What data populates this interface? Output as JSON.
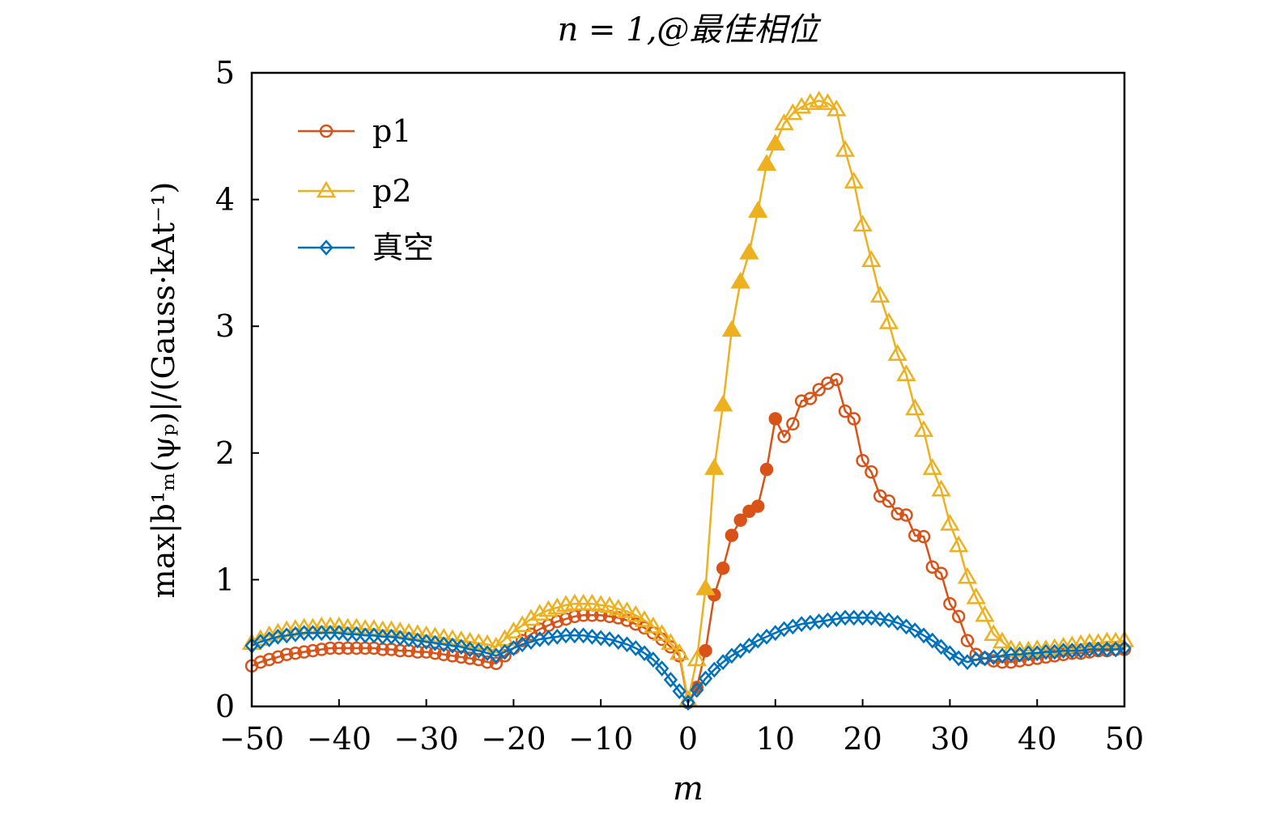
{
  "chart_data": {
    "type": "line",
    "title": "n = 1,@最佳相位",
    "xlabel": "m",
    "ylabel": "max|b¹ₘ(ψₚ)|/(Gauss·kAt⁻¹)",
    "xlim": [
      -50,
      50
    ],
    "ylim": [
      0,
      5
    ],
    "xticks": [
      -50,
      -40,
      -30,
      -20,
      -10,
      0,
      10,
      20,
      30,
      40,
      50
    ],
    "xtick_labels": [
      "−50",
      "−40",
      "−30",
      "−20",
      "−10",
      "0",
      "10",
      "20",
      "30",
      "40",
      "50"
    ],
    "yticks": [
      0,
      1,
      2,
      3,
      4,
      5
    ],
    "ytick_labels": [
      "0",
      "1",
      "2",
      "3",
      "4",
      "5"
    ],
    "grid": false,
    "legend_position": "top-left",
    "x_start": -50,
    "x_step": 1,
    "series": [
      {
        "name": "p1",
        "color": "#D95319",
        "marker": "circle",
        "filled_x": [
          1,
          2,
          3,
          4,
          5,
          6,
          7,
          8,
          9,
          10
        ],
        "values": [
          0.32,
          0.35,
          0.37,
          0.39,
          0.41,
          0.42,
          0.43,
          0.44,
          0.45,
          0.46,
          0.46,
          0.46,
          0.46,
          0.46,
          0.46,
          0.45,
          0.45,
          0.44,
          0.44,
          0.43,
          0.43,
          0.42,
          0.41,
          0.4,
          0.39,
          0.38,
          0.37,
          0.35,
          0.34,
          0.4,
          0.46,
          0.52,
          0.57,
          0.61,
          0.64,
          0.67,
          0.69,
          0.71,
          0.72,
          0.72,
          0.72,
          0.71,
          0.7,
          0.68,
          0.65,
          0.62,
          0.58,
          0.53,
          0.47,
          0.4,
          0.03,
          0.15,
          0.44,
          0.88,
          1.09,
          1.35,
          1.47,
          1.54,
          1.58,
          1.87,
          2.27,
          2.13,
          2.23,
          2.41,
          2.43,
          2.5,
          2.55,
          2.58,
          2.33,
          2.27,
          1.94,
          1.85,
          1.66,
          1.62,
          1.52,
          1.51,
          1.35,
          1.34,
          1.1,
          1.05,
          0.81,
          0.71,
          0.52,
          0.41,
          0.38,
          0.36,
          0.35,
          0.35,
          0.36,
          0.37,
          0.38,
          0.39,
          0.4,
          0.41,
          0.42,
          0.42,
          0.43,
          0.44,
          0.44,
          0.45,
          0.45
        ]
      },
      {
        "name": "p2",
        "color": "#EDB120",
        "marker": "triangle",
        "filled_x": [
          2,
          3,
          4,
          5,
          6,
          7,
          8,
          9,
          10
        ],
        "values": [
          0.5,
          0.53,
          0.56,
          0.58,
          0.6,
          0.61,
          0.62,
          0.62,
          0.63,
          0.63,
          0.63,
          0.62,
          0.62,
          0.61,
          0.61,
          0.6,
          0.6,
          0.59,
          0.58,
          0.57,
          0.56,
          0.55,
          0.54,
          0.53,
          0.52,
          0.51,
          0.5,
          0.49,
          0.47,
          0.53,
          0.59,
          0.64,
          0.69,
          0.73,
          0.76,
          0.78,
          0.8,
          0.81,
          0.81,
          0.81,
          0.8,
          0.79,
          0.77,
          0.75,
          0.72,
          0.68,
          0.63,
          0.57,
          0.5,
          0.42,
          0.05,
          0.37,
          0.93,
          1.88,
          2.38,
          2.97,
          3.35,
          3.58,
          3.91,
          4.28,
          4.44,
          4.6,
          4.68,
          4.73,
          4.76,
          4.78,
          4.76,
          4.71,
          4.39,
          4.14,
          3.8,
          3.52,
          3.24,
          3.03,
          2.78,
          2.62,
          2.35,
          2.18,
          1.88,
          1.71,
          1.44,
          1.27,
          1.02,
          0.86,
          0.72,
          0.57,
          0.51,
          0.45,
          0.44,
          0.44,
          0.45,
          0.45,
          0.46,
          0.47,
          0.48,
          0.49,
          0.5,
          0.5,
          0.51,
          0.51,
          0.52
        ]
      },
      {
        "name": "真空",
        "color": "#0072BD",
        "marker": "diamond",
        "filled_x": [],
        "values": [
          0.48,
          0.51,
          0.53,
          0.55,
          0.56,
          0.57,
          0.58,
          0.58,
          0.58,
          0.58,
          0.58,
          0.57,
          0.57,
          0.56,
          0.56,
          0.55,
          0.55,
          0.54,
          0.53,
          0.52,
          0.51,
          0.5,
          0.49,
          0.48,
          0.47,
          0.45,
          0.44,
          0.42,
          0.4,
          0.43,
          0.46,
          0.49,
          0.51,
          0.53,
          0.54,
          0.55,
          0.56,
          0.56,
          0.56,
          0.55,
          0.54,
          0.53,
          0.51,
          0.49,
          0.46,
          0.42,
          0.37,
          0.3,
          0.21,
          0.12,
          0.03,
          0.13,
          0.22,
          0.29,
          0.35,
          0.4,
          0.44,
          0.48,
          0.52,
          0.55,
          0.58,
          0.61,
          0.63,
          0.65,
          0.66,
          0.67,
          0.68,
          0.69,
          0.7,
          0.7,
          0.7,
          0.7,
          0.69,
          0.68,
          0.66,
          0.63,
          0.6,
          0.56,
          0.52,
          0.47,
          0.42,
          0.38,
          0.35,
          0.37,
          0.38,
          0.39,
          0.4,
          0.41,
          0.41,
          0.42,
          0.42,
          0.43,
          0.43,
          0.44,
          0.44,
          0.44,
          0.45,
          0.45,
          0.45,
          0.45,
          0.46
        ]
      }
    ]
  }
}
